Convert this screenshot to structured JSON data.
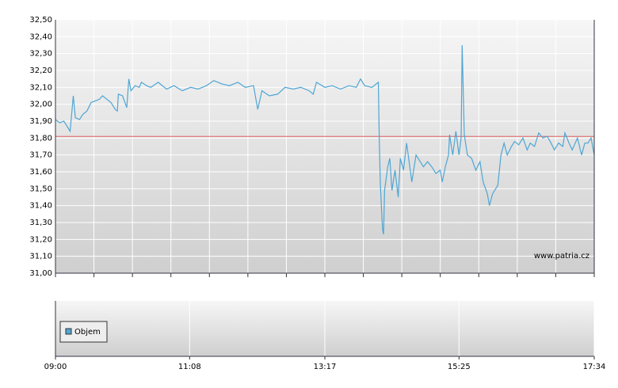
{
  "chart_data": [
    {
      "type": "line",
      "xlim": [
        "09:00",
        "17:34"
      ],
      "ylim": [
        31.0,
        32.5
      ],
      "yticks": [
        {
          "value": 31.0,
          "label": "31,00"
        },
        {
          "value": 31.1,
          "label": "31,10"
        },
        {
          "value": 31.2,
          "label": "31,20"
        },
        {
          "value": 31.3,
          "label": "31,30"
        },
        {
          "value": 31.4,
          "label": "31,40"
        },
        {
          "value": 31.5,
          "label": "31,50"
        },
        {
          "value": 31.6,
          "label": "31,60"
        },
        {
          "value": 31.7,
          "label": "31,70"
        },
        {
          "value": 31.8,
          "label": "31,80"
        },
        {
          "value": 31.9,
          "label": "31,90"
        },
        {
          "value": 32.0,
          "label": "32,00"
        },
        {
          "value": 32.1,
          "label": "32,10"
        },
        {
          "value": 32.2,
          "label": "32,20"
        },
        {
          "value": 32.3,
          "label": "32,30"
        },
        {
          "value": 32.4,
          "label": "32,40"
        },
        {
          "value": 32.5,
          "label": "32,50"
        }
      ],
      "grid": true,
      "reference_line": {
        "value": 31.81,
        "color": "#e06060"
      },
      "annotation": "www.patria.cz",
      "x": [
        "09:00",
        "09:04",
        "09:08",
        "09:12",
        "09:14",
        "09:17",
        "09:19",
        "09:23",
        "09:26",
        "09:30",
        "09:34",
        "09:38",
        "09:42",
        "09:45",
        "09:49",
        "09:53",
        "09:57",
        "09:59",
        "10:00",
        "10:04",
        "10:08",
        "10:10",
        "10:12",
        "10:16",
        "10:20",
        "10:22",
        "10:27",
        "10:31",
        "10:38",
        "10:46",
        "10:53",
        "11:01",
        "11:09",
        "11:16",
        "11:24",
        "11:31",
        "11:39",
        "11:46",
        "11:54",
        "12:01",
        "12:09",
        "12:13",
        "12:17",
        "12:24",
        "12:32",
        "12:39",
        "12:47",
        "12:54",
        "13:02",
        "13:06",
        "13:09",
        "13:17",
        "13:24",
        "13:32",
        "13:40",
        "13:47",
        "13:51",
        "13:55",
        "14:02",
        "14:08",
        "14:09",
        "14:10",
        "14:12",
        "14:13",
        "14:14",
        "14:17",
        "14:19",
        "14:21",
        "14:24",
        "14:27",
        "14:29",
        "14:32",
        "14:35",
        "14:37",
        "14:40",
        "14:44",
        "14:48",
        "14:51",
        "14:55",
        "14:59",
        "15:03",
        "15:07",
        "15:09",
        "15:12",
        "15:15",
        "15:16",
        "15:19",
        "15:22",
        "15:25",
        "15:27",
        "15:28",
        "15:30",
        "15:33",
        "15:37",
        "15:41",
        "15:45",
        "15:48",
        "15:52",
        "15:54",
        "15:57",
        "16:02",
        "16:05",
        "16:08",
        "16:11",
        "16:15",
        "16:18",
        "16:22",
        "16:26",
        "16:30",
        "16:33",
        "16:37",
        "16:41",
        "16:45",
        "16:49",
        "16:52",
        "16:56",
        "17:00",
        "17:04",
        "17:06",
        "17:10",
        "17:13",
        "17:18",
        "17:22",
        "17:25",
        "17:28",
        "17:31",
        "17:34"
      ],
      "series": [
        {
          "color": "#4ea6d4",
          "values": [
            31.91,
            31.89,
            31.9,
            31.86,
            31.84,
            32.05,
            31.92,
            31.91,
            31.94,
            31.96,
            32.01,
            32.02,
            32.03,
            32.05,
            32.03,
            32.01,
            31.97,
            31.96,
            32.06,
            32.05,
            31.98,
            32.15,
            32.08,
            32.11,
            32.1,
            32.13,
            32.11,
            32.1,
            32.13,
            32.09,
            32.11,
            32.08,
            32.1,
            32.09,
            32.11,
            32.14,
            32.12,
            32.11,
            32.13,
            32.1,
            32.11,
            31.97,
            32.08,
            32.05,
            32.06,
            32.1,
            32.09,
            32.1,
            32.08,
            32.06,
            32.13,
            32.1,
            32.11,
            32.09,
            32.11,
            32.1,
            32.15,
            32.11,
            32.1,
            32.13,
            31.77,
            31.52,
            31.26,
            31.23,
            31.49,
            31.63,
            31.68,
            31.49,
            31.61,
            31.45,
            31.68,
            31.61,
            31.77,
            31.68,
            31.54,
            31.7,
            31.66,
            31.63,
            31.66,
            31.63,
            31.59,
            31.61,
            31.54,
            31.63,
            31.7,
            31.82,
            31.7,
            31.84,
            31.7,
            31.8,
            32.35,
            31.82,
            31.7,
            31.68,
            31.61,
            31.66,
            31.54,
            31.47,
            31.4,
            31.47,
            31.52,
            31.7,
            31.77,
            31.7,
            31.75,
            31.78,
            31.76,
            31.8,
            31.73,
            31.77,
            31.75,
            31.83,
            31.8,
            31.81,
            31.78,
            31.73,
            31.77,
            31.75,
            31.83,
            31.77,
            31.73,
            31.8,
            31.7,
            31.77,
            31.77,
            31.8,
            31.7
          ]
        }
      ]
    },
    {
      "type": "bar",
      "xlim": [
        "09:00",
        "17:34"
      ],
      "xticks": [
        "09:00",
        "11:08",
        "13:17",
        "15:25",
        "17:34"
      ],
      "grid": true,
      "series": [
        {
          "name": "Objem",
          "color": "#4ea6d4",
          "values": []
        }
      ]
    }
  ]
}
